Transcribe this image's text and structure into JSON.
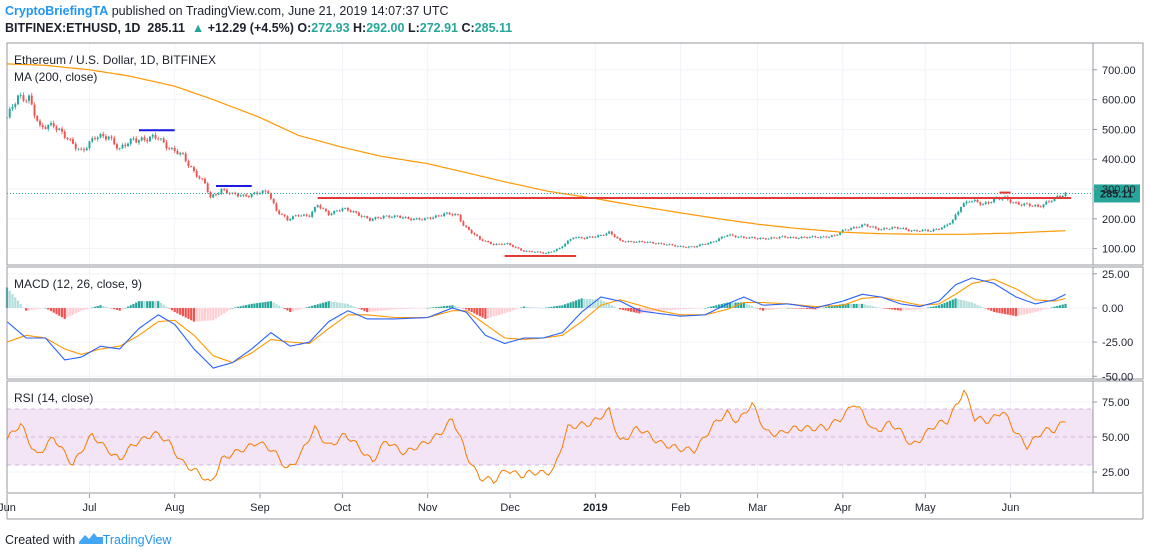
{
  "header": {
    "author": "CryptoBriefingTA",
    "published_text": "published on TradingView.com, June 21, 2019 14:07:37 UTC",
    "symbol": "BITFINEX:ETHUSD, 1D",
    "last": "285.11",
    "change": "+12.29 (+4.5%)",
    "o_label": "O:",
    "o": "272.93",
    "h_label": "H:",
    "h": "292.00",
    "l_label": "L:",
    "l": "272.91",
    "c_label": "C:",
    "c": "285.11"
  },
  "colors": {
    "up": "#26a69a",
    "down": "#ef5350",
    "ma": "#ff9800",
    "macd": "#2962ff",
    "signal": "#ff9800",
    "rsi": "#f57c00",
    "rsi_band": "#f3e5f5",
    "support": "#e53935",
    "blue_marks": "#1a1ae0",
    "price_tag": "#26a69a"
  },
  "footer": {
    "created_with": "Created with",
    "brand": "TradingView"
  },
  "chart_data": [
    {
      "type": "candlestick",
      "title": "Ethereum / U.S. Dollar, 1D, BITFINEX",
      "indicator_label": "MA (200, close)",
      "y_ticks": [
        "700.00",
        "600.00",
        "500.00",
        "400.00",
        "300.00",
        "200.00",
        "100.00"
      ],
      "y_tick_values": [
        700,
        600,
        500,
        400,
        300,
        200,
        100
      ],
      "ylim": [
        45,
        790
      ],
      "x_ticks": [
        "Jun",
        "Jul",
        "Aug",
        "Sep",
        "Oct",
        "Nov",
        "Dec",
        "2019",
        "Feb",
        "Mar",
        "Apr",
        "May",
        "Jun"
      ],
      "x_tick_dates": [
        "2018-06-01",
        "2018-07-01",
        "2018-08-01",
        "2018-09-01",
        "2018-10-01",
        "2018-11-01",
        "2018-12-01",
        "2019-01-01",
        "2019-02-01",
        "2019-03-01",
        "2019-04-01",
        "2019-05-01",
        "2019-06-01"
      ],
      "x_range": [
        "2018-06-01",
        "2019-07-01"
      ],
      "last_price_label": "285.11",
      "last_price": 285.11,
      "close_anchors": [
        [
          "2018-06-01",
          540
        ],
        [
          "2018-06-05",
          605
        ],
        [
          "2018-06-09",
          610
        ],
        [
          "2018-06-13",
          500
        ],
        [
          "2018-06-18",
          520
        ],
        [
          "2018-06-24",
          455
        ],
        [
          "2018-06-28",
          430
        ],
        [
          "2018-07-03",
          470
        ],
        [
          "2018-07-08",
          480
        ],
        [
          "2018-07-12",
          430
        ],
        [
          "2018-07-17",
          470
        ],
        [
          "2018-07-22",
          465
        ],
        [
          "2018-07-26",
          475
        ],
        [
          "2018-07-31",
          430
        ],
        [
          "2018-08-04",
          410
        ],
        [
          "2018-08-08",
          360
        ],
        [
          "2018-08-12",
          315
        ],
        [
          "2018-08-14",
          270
        ],
        [
          "2018-08-18",
          300
        ],
        [
          "2018-08-22",
          280
        ],
        [
          "2018-08-26",
          278
        ],
        [
          "2018-08-31",
          285
        ],
        [
          "2018-09-04",
          290
        ],
        [
          "2018-09-07",
          230
        ],
        [
          "2018-09-11",
          195
        ],
        [
          "2018-09-15",
          215
        ],
        [
          "2018-09-19",
          210
        ],
        [
          "2018-09-22",
          245
        ],
        [
          "2018-09-26",
          218
        ],
        [
          "2018-10-01",
          232
        ],
        [
          "2018-10-05",
          225
        ],
        [
          "2018-10-11",
          195
        ],
        [
          "2018-10-16",
          210
        ],
        [
          "2018-10-24",
          203
        ],
        [
          "2018-10-31",
          197
        ],
        [
          "2018-11-07",
          218
        ],
        [
          "2018-11-12",
          210
        ],
        [
          "2018-11-14",
          180
        ],
        [
          "2018-11-20",
          130
        ],
        [
          "2018-11-25",
          115
        ],
        [
          "2018-11-30",
          115
        ],
        [
          "2018-12-06",
          92
        ],
        [
          "2018-12-14",
          85
        ],
        [
          "2018-12-19",
          100
        ],
        [
          "2018-12-24",
          140
        ],
        [
          "2018-12-28",
          135
        ],
        [
          "2019-01-01",
          140
        ],
        [
          "2019-01-06",
          155
        ],
        [
          "2019-01-10",
          125
        ],
        [
          "2019-01-16",
          123
        ],
        [
          "2019-01-24",
          118
        ],
        [
          "2019-01-31",
          107
        ],
        [
          "2019-02-06",
          106
        ],
        [
          "2019-02-12",
          121
        ],
        [
          "2019-02-18",
          145
        ],
        [
          "2019-02-24",
          138
        ],
        [
          "2019-03-01",
          133
        ],
        [
          "2019-03-10",
          138
        ],
        [
          "2019-03-19",
          137
        ],
        [
          "2019-03-29",
          142
        ],
        [
          "2019-04-02",
          165
        ],
        [
          "2019-04-09",
          178
        ],
        [
          "2019-04-15",
          165
        ],
        [
          "2019-04-22",
          170
        ],
        [
          "2019-04-27",
          158
        ],
        [
          "2019-05-03",
          162
        ],
        [
          "2019-05-08",
          172
        ],
        [
          "2019-05-11",
          195
        ],
        [
          "2019-05-14",
          245
        ],
        [
          "2019-05-17",
          260
        ],
        [
          "2019-05-22",
          250
        ],
        [
          "2019-05-26",
          265
        ],
        [
          "2019-05-30",
          268
        ],
        [
          "2019-06-03",
          253
        ],
        [
          "2019-06-07",
          245
        ],
        [
          "2019-06-11",
          242
        ],
        [
          "2019-06-14",
          255
        ],
        [
          "2019-06-18",
          270
        ],
        [
          "2019-06-21",
          285
        ]
      ],
      "ma200_anchors": [
        [
          "2018-06-01",
          720
        ],
        [
          "2018-06-15",
          715
        ],
        [
          "2018-07-01",
          700
        ],
        [
          "2018-07-15",
          680
        ],
        [
          "2018-08-01",
          645
        ],
        [
          "2018-08-15",
          600
        ],
        [
          "2018-09-01",
          540
        ],
        [
          "2018-09-15",
          480
        ],
        [
          "2018-10-01",
          440
        ],
        [
          "2018-10-15",
          410
        ],
        [
          "2018-11-01",
          385
        ],
        [
          "2018-11-15",
          355
        ],
        [
          "2018-12-01",
          320
        ],
        [
          "2018-12-15",
          292
        ],
        [
          "2019-01-01",
          268
        ],
        [
          "2019-01-15",
          245
        ],
        [
          "2019-02-01",
          220
        ],
        [
          "2019-02-15",
          200
        ],
        [
          "2019-03-01",
          182
        ],
        [
          "2019-03-15",
          168
        ],
        [
          "2019-04-01",
          155
        ],
        [
          "2019-04-15",
          150
        ],
        [
          "2019-05-01",
          148
        ],
        [
          "2019-05-15",
          148
        ],
        [
          "2019-06-01",
          152
        ],
        [
          "2019-06-15",
          158
        ],
        [
          "2019-06-21",
          160
        ]
      ],
      "annotations": {
        "support_line": {
          "value": 270,
          "from": "2018-09-22",
          "to": "2019-06-23"
        },
        "low_line": {
          "value": 75,
          "from": "2018-11-29",
          "to": "2018-12-25"
        },
        "blue_mark_1": {
          "value": 497,
          "from": "2018-07-19",
          "to": "2018-08-01"
        },
        "blue_mark_2": {
          "value": 310,
          "from": "2018-08-16",
          "to": "2018-08-29"
        },
        "red_mark_top": {
          "value": 288,
          "from": "2019-05-28",
          "to": "2019-06-01"
        }
      }
    },
    {
      "type": "histogram+line",
      "indicator_label": "MACD (12, 26, close, 9)",
      "y_ticks": [
        "25.00",
        "0.00",
        "-25.00",
        "-50.00"
      ],
      "y_tick_values": [
        25,
        0,
        -25,
        -50
      ],
      "ylim": [
        -52,
        30
      ],
      "macd_anchors": [
        [
          "2018-06-01",
          -10
        ],
        [
          "2018-06-08",
          -22
        ],
        [
          "2018-06-15",
          -22
        ],
        [
          "2018-06-22",
          -38
        ],
        [
          "2018-06-28",
          -36
        ],
        [
          "2018-07-05",
          -28
        ],
        [
          "2018-07-12",
          -30
        ],
        [
          "2018-07-19",
          -15
        ],
        [
          "2018-07-26",
          -5
        ],
        [
          "2018-08-01",
          -12
        ],
        [
          "2018-08-08",
          -30
        ],
        [
          "2018-08-15",
          -44
        ],
        [
          "2018-08-22",
          -40
        ],
        [
          "2018-08-29",
          -30
        ],
        [
          "2018-09-05",
          -18
        ],
        [
          "2018-09-12",
          -28
        ],
        [
          "2018-09-19",
          -25
        ],
        [
          "2018-09-26",
          -10
        ],
        [
          "2018-10-03",
          -2
        ],
        [
          "2018-10-10",
          -8
        ],
        [
          "2018-10-20",
          -8
        ],
        [
          "2018-11-01",
          -7
        ],
        [
          "2018-11-10",
          0
        ],
        [
          "2018-11-15",
          -3
        ],
        [
          "2018-11-22",
          -20
        ],
        [
          "2018-11-29",
          -26
        ],
        [
          "2018-12-06",
          -22
        ],
        [
          "2018-12-13",
          -22
        ],
        [
          "2018-12-20",
          -18
        ],
        [
          "2018-12-27",
          -3
        ],
        [
          "2019-01-03",
          8
        ],
        [
          "2019-01-10",
          5
        ],
        [
          "2019-01-17",
          -2
        ],
        [
          "2019-01-24",
          -4
        ],
        [
          "2019-02-01",
          -6
        ],
        [
          "2019-02-10",
          -5
        ],
        [
          "2019-02-18",
          3
        ],
        [
          "2019-02-24",
          8
        ],
        [
          "2019-03-03",
          2
        ],
        [
          "2019-03-12",
          3
        ],
        [
          "2019-03-22",
          0
        ],
        [
          "2019-04-01",
          5
        ],
        [
          "2019-04-08",
          10
        ],
        [
          "2019-04-15",
          8
        ],
        [
          "2019-04-22",
          3
        ],
        [
          "2019-04-29",
          1
        ],
        [
          "2019-05-06",
          5
        ],
        [
          "2019-05-12",
          17
        ],
        [
          "2019-05-18",
          22
        ],
        [
          "2019-05-26",
          18
        ],
        [
          "2019-06-03",
          8
        ],
        [
          "2019-06-10",
          3
        ],
        [
          "2019-06-17",
          6
        ],
        [
          "2019-06-21",
          10
        ]
      ],
      "signal_anchors": [
        [
          "2018-06-01",
          -25
        ],
        [
          "2018-06-08",
          -20
        ],
        [
          "2018-06-15",
          -22
        ],
        [
          "2018-06-22",
          -30
        ],
        [
          "2018-06-28",
          -34
        ],
        [
          "2018-07-05",
          -30
        ],
        [
          "2018-07-12",
          -28
        ],
        [
          "2018-07-19",
          -20
        ],
        [
          "2018-07-26",
          -10
        ],
        [
          "2018-08-01",
          -9
        ],
        [
          "2018-08-08",
          -20
        ],
        [
          "2018-08-15",
          -35
        ],
        [
          "2018-08-22",
          -40
        ],
        [
          "2018-08-29",
          -33
        ],
        [
          "2018-09-05",
          -23
        ],
        [
          "2018-09-12",
          -25
        ],
        [
          "2018-09-19",
          -26
        ],
        [
          "2018-09-26",
          -15
        ],
        [
          "2018-10-03",
          -5
        ],
        [
          "2018-10-10",
          -5
        ],
        [
          "2018-10-20",
          -7
        ],
        [
          "2018-11-01",
          -7
        ],
        [
          "2018-11-10",
          -2
        ],
        [
          "2018-11-15",
          -2
        ],
        [
          "2018-11-22",
          -12
        ],
        [
          "2018-11-29",
          -22
        ],
        [
          "2018-12-06",
          -23
        ],
        [
          "2018-12-13",
          -22
        ],
        [
          "2018-12-20",
          -20
        ],
        [
          "2018-12-27",
          -10
        ],
        [
          "2019-01-03",
          2
        ],
        [
          "2019-01-10",
          6
        ],
        [
          "2019-01-17",
          2
        ],
        [
          "2019-01-24",
          -2
        ],
        [
          "2019-02-01",
          -5
        ],
        [
          "2019-02-10",
          -5
        ],
        [
          "2019-02-18",
          -1
        ],
        [
          "2019-02-24",
          4
        ],
        [
          "2019-03-03",
          4
        ],
        [
          "2019-03-12",
          3
        ],
        [
          "2019-03-22",
          1
        ],
        [
          "2019-04-01",
          2
        ],
        [
          "2019-04-08",
          7
        ],
        [
          "2019-04-15",
          8
        ],
        [
          "2019-04-22",
          5
        ],
        [
          "2019-04-29",
          2
        ],
        [
          "2019-05-06",
          3
        ],
        [
          "2019-05-12",
          10
        ],
        [
          "2019-05-18",
          18
        ],
        [
          "2019-05-26",
          21
        ],
        [
          "2019-06-03",
          14
        ],
        [
          "2019-06-10",
          6
        ],
        [
          "2019-06-17",
          5
        ],
        [
          "2019-06-21",
          7
        ]
      ]
    },
    {
      "type": "line",
      "indicator_label": "RSI (14, close)",
      "y_ticks": [
        "75.00",
        "50.00",
        "25.00"
      ],
      "y_tick_values": [
        75,
        50,
        25
      ],
      "ylim": [
        10,
        90
      ],
      "band": [
        30,
        70
      ],
      "rsi_anchors": [
        [
          "2018-06-01",
          48
        ],
        [
          "2018-06-06",
          58
        ],
        [
          "2018-06-12",
          38
        ],
        [
          "2018-06-18",
          48
        ],
        [
          "2018-06-25",
          32
        ],
        [
          "2018-07-02",
          50
        ],
        [
          "2018-07-08",
          42
        ],
        [
          "2018-07-12",
          33
        ],
        [
          "2018-07-19",
          48
        ],
        [
          "2018-07-24",
          53
        ],
        [
          "2018-07-30",
          45
        ],
        [
          "2018-08-04",
          33
        ],
        [
          "2018-08-10",
          22
        ],
        [
          "2018-08-14",
          17
        ],
        [
          "2018-08-18",
          35
        ],
        [
          "2018-08-24",
          38
        ],
        [
          "2018-08-31",
          48
        ],
        [
          "2018-09-05",
          40
        ],
        [
          "2018-09-11",
          28
        ],
        [
          "2018-09-16",
          38
        ],
        [
          "2018-09-21",
          55
        ],
        [
          "2018-09-26",
          45
        ],
        [
          "2018-10-02",
          50
        ],
        [
          "2018-10-08",
          42
        ],
        [
          "2018-10-12",
          33
        ],
        [
          "2018-10-17",
          46
        ],
        [
          "2018-10-24",
          40
        ],
        [
          "2018-10-30",
          43
        ],
        [
          "2018-11-06",
          55
        ],
        [
          "2018-11-10",
          62
        ],
        [
          "2018-11-15",
          38
        ],
        [
          "2018-11-20",
          22
        ],
        [
          "2018-11-25",
          17
        ],
        [
          "2018-11-30",
          28
        ],
        [
          "2018-12-06",
          22
        ],
        [
          "2018-12-13",
          25
        ],
        [
          "2018-12-17",
          28
        ],
        [
          "2018-12-22",
          55
        ],
        [
          "2018-12-27",
          60
        ],
        [
          "2019-01-02",
          62
        ],
        [
          "2019-01-06",
          68
        ],
        [
          "2019-01-10",
          48
        ],
        [
          "2019-01-16",
          55
        ],
        [
          "2019-01-24",
          48
        ],
        [
          "2019-01-31",
          40
        ],
        [
          "2019-02-06",
          42
        ],
        [
          "2019-02-12",
          55
        ],
        [
          "2019-02-18",
          68
        ],
        [
          "2019-02-22",
          62
        ],
        [
          "2019-02-27",
          72
        ],
        [
          "2019-03-04",
          55
        ],
        [
          "2019-03-10",
          52
        ],
        [
          "2019-03-18",
          58
        ],
        [
          "2019-03-26",
          55
        ],
        [
          "2019-04-02",
          68
        ],
        [
          "2019-04-05",
          74
        ],
        [
          "2019-04-12",
          55
        ],
        [
          "2019-04-18",
          60
        ],
        [
          "2019-04-26",
          45
        ],
        [
          "2019-05-03",
          55
        ],
        [
          "2019-05-09",
          62
        ],
        [
          "2019-05-12",
          73
        ],
        [
          "2019-05-15",
          83
        ],
        [
          "2019-05-19",
          62
        ],
        [
          "2019-05-24",
          63
        ],
        [
          "2019-05-29",
          68
        ],
        [
          "2019-06-02",
          55
        ],
        [
          "2019-06-07",
          45
        ],
        [
          "2019-06-12",
          52
        ],
        [
          "2019-06-17",
          55
        ],
        [
          "2019-06-21",
          64
        ]
      ]
    }
  ]
}
